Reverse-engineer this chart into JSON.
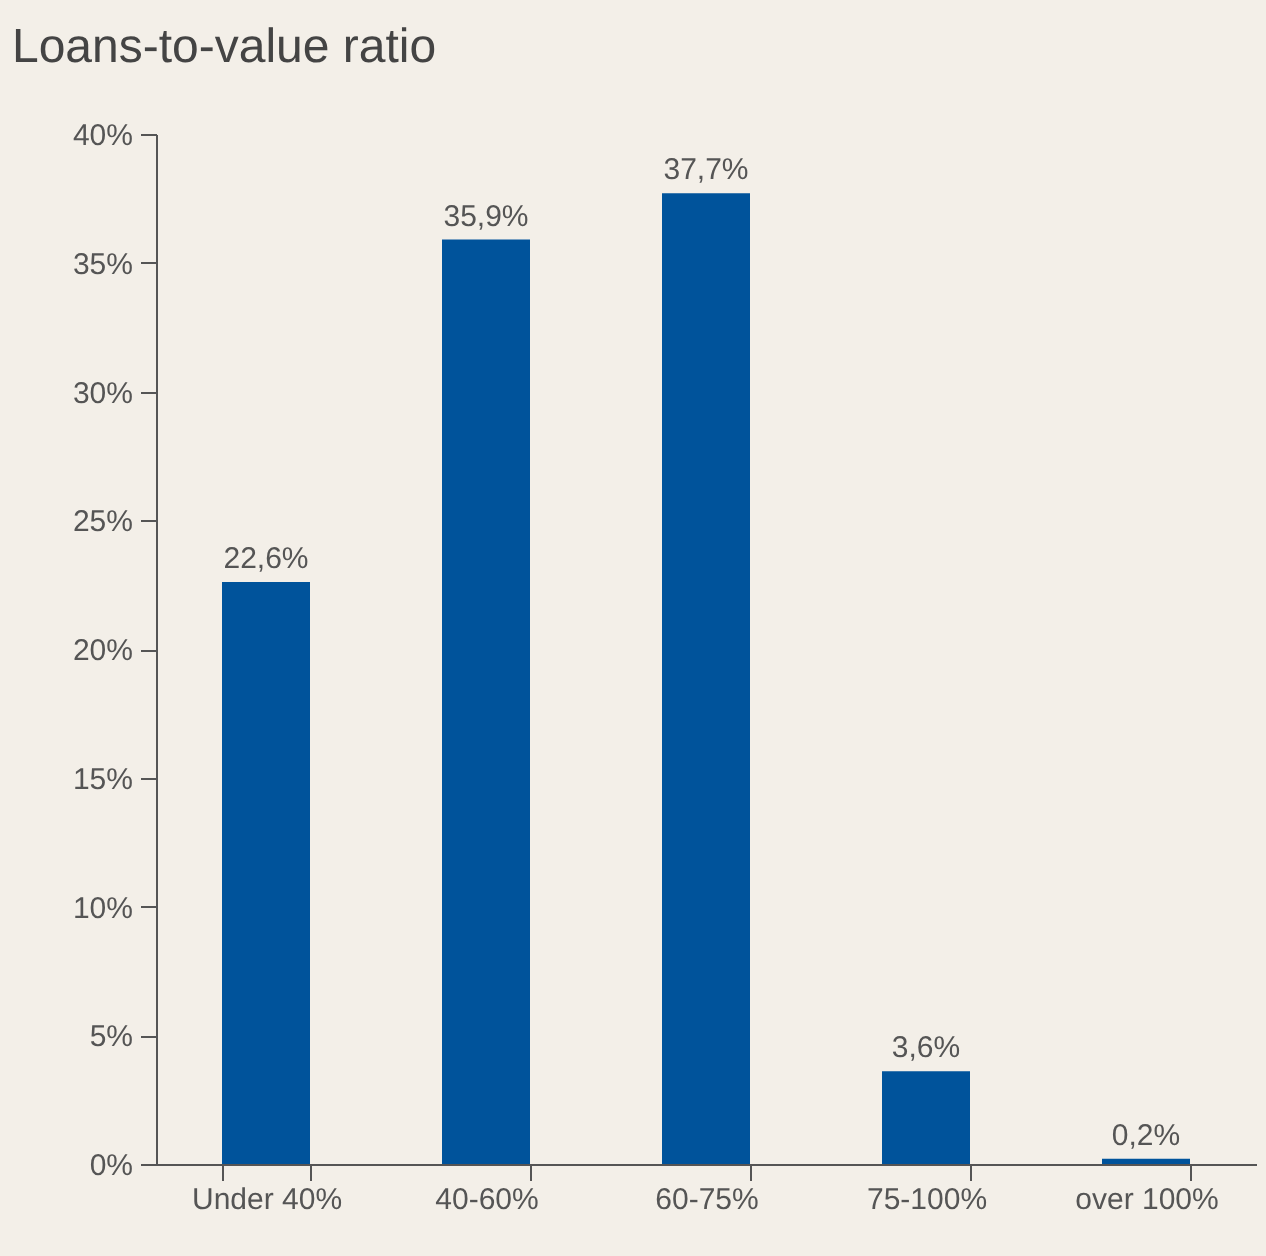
{
  "chart_data": {
    "type": "bar",
    "title": "Loans-to-value ratio",
    "categories": [
      "Under 40%",
      "40-60%",
      "60-75%",
      "75-100%",
      "over 100%"
    ],
    "values": [
      22.6,
      35.9,
      37.7,
      3.6,
      0.2
    ],
    "value_labels": [
      "22,6%",
      "35,9%",
      "37,7%",
      "3,6%",
      "0,2%"
    ],
    "color": "#00539b",
    "ylim": [
      0,
      40
    ],
    "yticks": [
      {
        "value": 0,
        "label": "0%"
      },
      {
        "value": 5,
        "label": "5%"
      },
      {
        "value": 10,
        "label": "10%"
      },
      {
        "value": 15,
        "label": "15%"
      },
      {
        "value": 20,
        "label": "20%"
      },
      {
        "value": 25,
        "label": "25%"
      },
      {
        "value": 30,
        "label": "30%"
      },
      {
        "value": 35,
        "label": "35%"
      },
      {
        "value": 40,
        "label": "40%"
      }
    ],
    "grid": false
  }
}
